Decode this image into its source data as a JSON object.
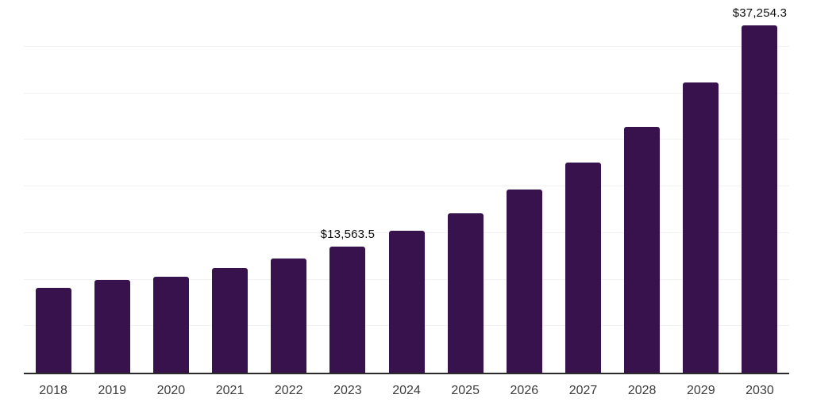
{
  "chart_data": {
    "type": "bar",
    "categories": [
      "2018",
      "2019",
      "2020",
      "2021",
      "2022",
      "2023",
      "2024",
      "2025",
      "2026",
      "2027",
      "2028",
      "2029",
      "2030"
    ],
    "values": [
      9150,
      10000,
      10290,
      11220,
      12270,
      13563.5,
      15250,
      17150,
      19640,
      22560,
      26390,
      31180,
      37254.3
    ],
    "bar_labels": [
      "",
      "",
      "",
      "",
      "",
      "$13,563.5",
      "",
      "",
      "",
      "",
      "",
      "",
      "$37,254.3"
    ],
    "title": "",
    "xlabel": "",
    "ylabel": "",
    "ylim": [
      0,
      40000
    ],
    "gridline_step": 5000,
    "grid": true,
    "legend": false,
    "colors": {
      "bar": "#37124D",
      "axis": "#2B2B2B",
      "gridline": "#F2F2F2",
      "value_label": "#0F0F0F",
      "tick_label": "#3C3C3C",
      "background": "#FFFFFF"
    }
  }
}
